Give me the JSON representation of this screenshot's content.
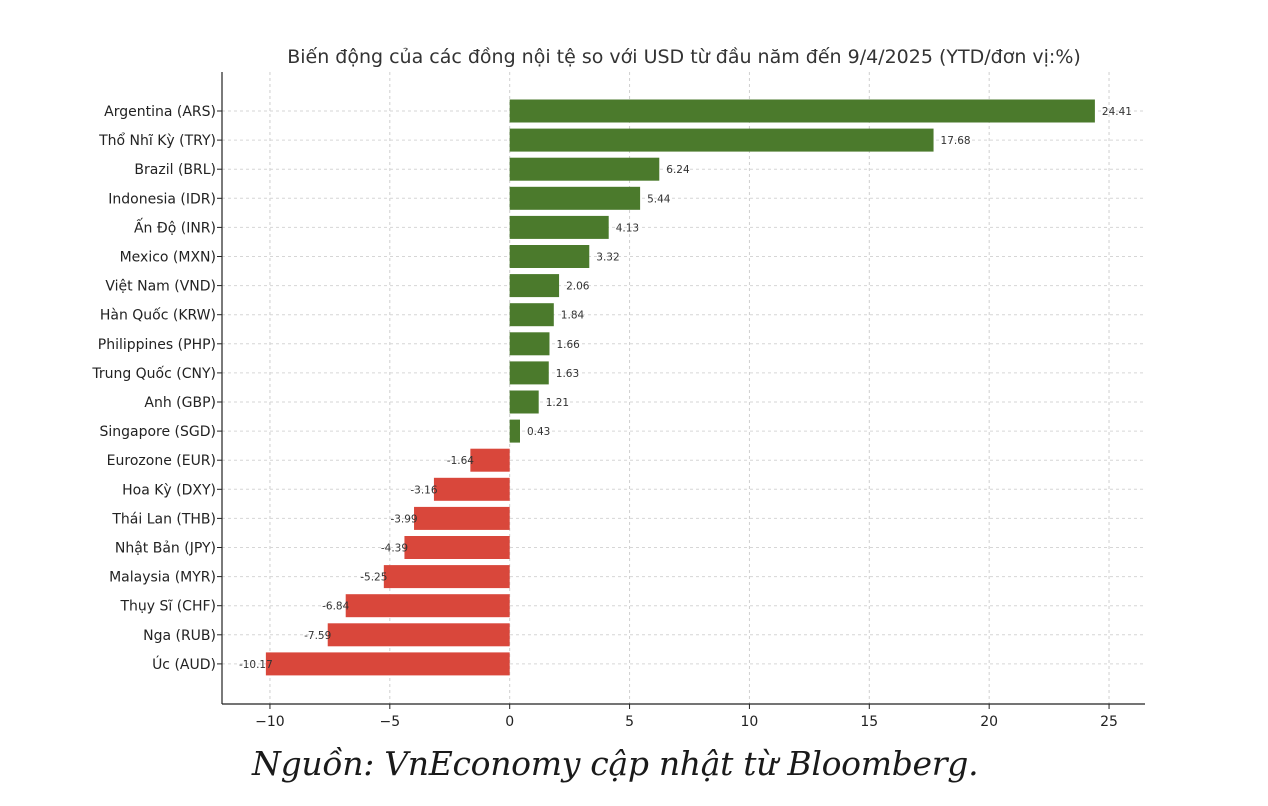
{
  "chart_data": {
    "type": "bar",
    "orientation": "horizontal",
    "title": "Biến động của các đồng nội tệ so với USD từ đầu năm đến 9/4/2025 (YTD/đơn vị:%)",
    "xlabel": "",
    "ylabel": "",
    "categories": [
      "Argentina (ARS)",
      "Thổ Nhĩ Kỳ (TRY)",
      "Brazil (BRL)",
      "Indonesia (IDR)",
      "Ấn Độ (INR)",
      "Mexico (MXN)",
      "Việt Nam (VND)",
      "Hàn Quốc (KRW)",
      "Philippines (PHP)",
      "Trung Quốc (CNY)",
      "Anh (GBP)",
      "Singapore (SGD)",
      "Eurozone (EUR)",
      "Hoa Kỳ (DXY)",
      "Thái Lan (THB)",
      "Nhật Bản (JPY)",
      "Malaysia (MYR)",
      "Thụy Sĩ (CHF)",
      "Nga (RUB)",
      "Úc (AUD)"
    ],
    "values": [
      24.41,
      17.68,
      6.24,
      5.44,
      4.13,
      3.32,
      2.06,
      1.84,
      1.66,
      1.63,
      1.21,
      0.43,
      -1.64,
      -3.16,
      -3.99,
      -4.39,
      -5.25,
      -6.84,
      -7.59,
      -10.17
    ],
    "value_labels": [
      "24.41",
      "17.68",
      "6.24",
      "5.44",
      "4.13",
      "3.32",
      "2.06",
      "1.84",
      "1.66",
      "1.63",
      "1.21",
      "0.43",
      "-1.64",
      "-3.16",
      "-3.99",
      "-4.39",
      "-5.25",
      "-6.84",
      "-7.59",
      "-10.17"
    ],
    "x_ticks": [
      -10,
      -5,
      0,
      5,
      10,
      15,
      20,
      25
    ],
    "x_tick_labels": [
      "−10",
      "−5",
      "0",
      "5",
      "10",
      "15",
      "20",
      "25"
    ],
    "xlim": [
      -12,
      26.5
    ],
    "grid": true,
    "colors": {
      "positive": "#4b7a2c",
      "negative": "#d9473b"
    }
  },
  "source_note": "Nguồn: VnEconomy cập nhật từ Bloomberg."
}
